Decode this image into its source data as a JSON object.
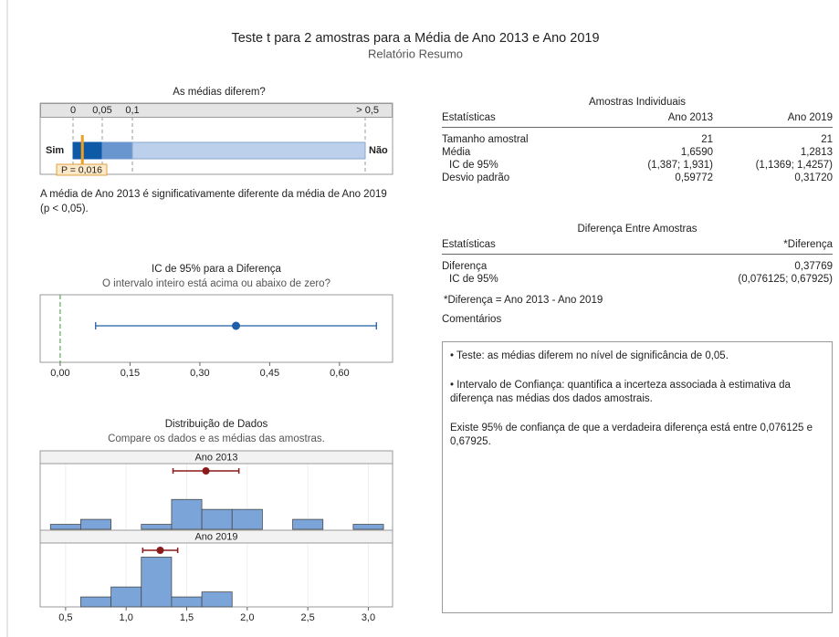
{
  "header": {
    "title": "Teste t para 2 amostras para a Média de Ano 2013 e Ano 2019",
    "subtitle": "Relatório Resumo"
  },
  "pvalue_panel": {
    "title": "As médias diferem?",
    "ticks": [
      0,
      {
        "value": 0.05,
        "label": "0,05"
      },
      {
        "value": 0.1,
        "label": "0,1"
      },
      {
        "value": 0.5,
        "label": "> 0,5"
      }
    ],
    "colors": [
      "#0e5aa7",
      "#6a96cf",
      "#bcd0ec"
    ],
    "left_label": "Sim",
    "right_label": "Não",
    "p_value": 0.016,
    "p_label": "P = 0,016",
    "marker_color": "#f0a020",
    "conclusion": "A média de Ano 2013 é significativamente diferente da média de Ano 2019 (p < 0,05)."
  },
  "ci_panel": {
    "title": "IC de 95% para a Diferença",
    "subtitle": "O intervalo inteiro está acima ou abaixo de zero?",
    "xlim": [
      -0.043,
      0.714
    ],
    "xticks": [
      {
        "value": 0,
        "label": "0,00"
      },
      {
        "value": 0.15,
        "label": "0,15"
      },
      {
        "value": 0.3,
        "label": "0,30"
      },
      {
        "value": 0.45,
        "label": "0,45"
      },
      {
        "value": 0.6,
        "label": "0,60"
      }
    ],
    "color": "#1f5fa8",
    "reference_color": "#3a9a3a"
  },
  "distribution_panel": {
    "title": "Distribuição de Dados",
    "subtitle": "Compare os dados e as médias das amostras.",
    "xlim": [
      0.29,
      3.2
    ],
    "xticks": [
      {
        "value": 0.5,
        "label": "0,5"
      },
      {
        "value": 1,
        "label": "1,0"
      },
      {
        "value": 1.5,
        "label": "1,5"
      },
      {
        "value": 2,
        "label": "2,0"
      },
      {
        "value": 2.5,
        "label": "2,5"
      },
      {
        "value": 3,
        "label": "3,0"
      }
    ],
    "bins": [
      0.375,
      0.625,
      0.875,
      1.125,
      1.375,
      1.625,
      1.875,
      2.125,
      2.375,
      2.625,
      2.875,
      3.125
    ],
    "ylim": [
      0,
      11
    ],
    "color": "#7ba4d9",
    "mean_color": "#8b1a1a",
    "groups": [
      {
        "name": "Ano 2013",
        "counts": [
          1,
          2,
          0,
          1,
          6,
          4,
          4,
          0,
          2,
          0,
          1
        ]
      },
      {
        "name": "Ano 2019",
        "counts": [
          0,
          2,
          4,
          10,
          2,
          3,
          0,
          0,
          0,
          0,
          0
        ]
      }
    ]
  },
  "individual_table": {
    "title": "Amostras Individuais",
    "columns": [
      "Estatísticas",
      "Ano 2013",
      "Ano 2019"
    ],
    "rows": [
      [
        "Tamanho amostral",
        21,
        21
      ],
      [
        "Média",
        {
          "value": 1.659,
          "label": "1,6590"
        },
        {
          "value": 1.2813,
          "label": "1,2813"
        }
      ],
      [
        "IC de 95%",
        {
          "lower": 1.387,
          "upper": 1.931,
          "label": "(1,387; 1,931)"
        },
        {
          "lower": 1.1369,
          "upper": 1.4257,
          "label": "(1,1369; 1,4257)"
        }
      ],
      [
        "Desvio padrão",
        {
          "value": 0.59772,
          "label": "0,59772"
        },
        {
          "value": 0.3172,
          "label": "0,31720"
        }
      ]
    ]
  },
  "difference_table": {
    "title": "Diferença Entre Amostras",
    "columns": [
      "Estatísticas",
      "*Diferença"
    ],
    "rows": [
      [
        "Diferença",
        {
          "value": 0.37769,
          "label": "0,37769"
        }
      ],
      [
        "IC de 95%",
        {
          "lower": 0.076125,
          "upper": 0.67925,
          "label": "(0,076125; 0,67925)"
        }
      ]
    ],
    "footnote": "*Diferença = Ano 2013 - Ano 2019"
  },
  "comments": {
    "title": "Comentários",
    "items": [
      "• Teste: as médias diferem no nível de significância de 0,05.",
      "• Intervalo de Confiança: quantifica a incerteza associada à estimativa da diferença nas médias dos dados amostrais.",
      "Existe 95% de confiança de que a verdadeira diferença está entre 0,076125 e 0,67925."
    ]
  }
}
